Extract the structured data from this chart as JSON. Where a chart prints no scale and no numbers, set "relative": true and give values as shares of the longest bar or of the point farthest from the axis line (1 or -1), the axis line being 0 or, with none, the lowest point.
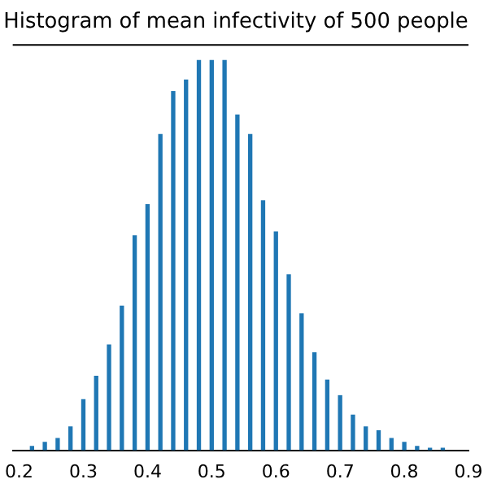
{
  "chart_data": {
    "type": "bar",
    "title": "Histogram of mean infectivity of 500 people",
    "relative": true,
    "color": "#1f77b4",
    "x": [
      0.22,
      0.24,
      0.26,
      0.28,
      0.3,
      0.32,
      0.34,
      0.36,
      0.38,
      0.4,
      0.42,
      0.44,
      0.46,
      0.48,
      0.5,
      0.52,
      0.54,
      0.56,
      0.58,
      0.6,
      0.62,
      0.64,
      0.66,
      0.68,
      0.7,
      0.72,
      0.74,
      0.76,
      0.78,
      0.8,
      0.82,
      0.84,
      0.86
    ],
    "values": [
      0.01,
      0.02,
      0.03,
      0.06,
      0.13,
      0.19,
      0.27,
      0.37,
      0.55,
      0.63,
      0.81,
      0.92,
      0.95,
      1.0,
      1.0,
      1.0,
      0.86,
      0.81,
      0.64,
      0.56,
      0.45,
      0.35,
      0.25,
      0.18,
      0.14,
      0.09,
      0.06,
      0.05,
      0.03,
      0.02,
      0.01,
      0.005,
      0.005
    ],
    "xlim": [
      0.19,
      0.9
    ],
    "xticks": [
      0.2,
      0.3,
      0.4,
      0.5,
      0.6,
      0.7,
      0.8,
      0.9
    ],
    "grid": false,
    "legend": false
  }
}
